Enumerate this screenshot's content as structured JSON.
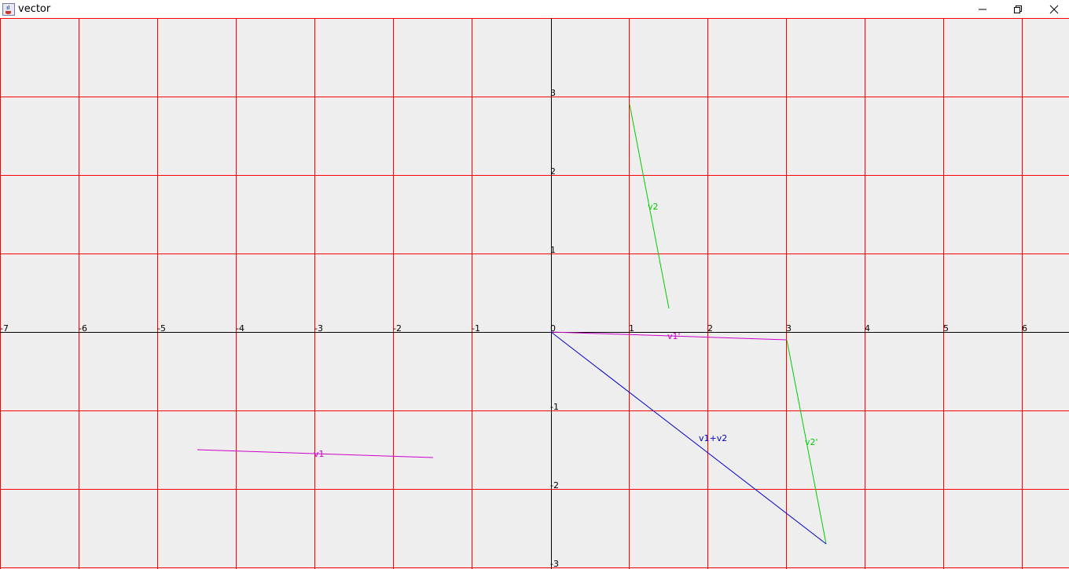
{
  "window": {
    "title": "vector",
    "app_icon": "java-cup-icon",
    "controls": [
      "minimize-icon",
      "restore-icon",
      "close-icon"
    ]
  },
  "colors": {
    "background": "#eeeeee",
    "grid": "#ff0000",
    "axis": "#000000",
    "v1": "#cc00cc",
    "v2": "#00cc00",
    "sum": "#0000cc"
  },
  "chart_data": {
    "type": "line",
    "xlim": [
      -7,
      6.6
    ],
    "ylim": [
      -3,
      4
    ],
    "grid": true,
    "x_ticks": [
      "-7",
      "-6",
      "-5",
      "-4",
      "-3",
      "-2",
      "-1",
      "0",
      "1",
      "2",
      "3",
      "4",
      "5",
      "6"
    ],
    "y_ticks": [
      "3",
      "2",
      "1",
      "-1",
      "-2",
      "-3"
    ],
    "vectors": [
      {
        "name": "v1",
        "color_key": "v1",
        "from": [
          -4.5,
          -1.5
        ],
        "to": [
          -1.5,
          -1.6
        ],
        "label_at": [
          -3.0,
          -1.55
        ]
      },
      {
        "name": "v2",
        "color_key": "v2",
        "from": [
          1.0,
          2.9
        ],
        "to": [
          1.5,
          0.3
        ],
        "label_at": [
          1.25,
          1.6
        ]
      },
      {
        "name": "v1'",
        "color_key": "v1",
        "from": [
          0.0,
          0.0
        ],
        "to": [
          3.0,
          -0.1
        ],
        "label_at": [
          1.5,
          -0.05
        ]
      },
      {
        "name": "v2'",
        "color_key": "v2",
        "from": [
          3.0,
          -0.1
        ],
        "to": [
          3.5,
          -2.7
        ],
        "label_at": [
          3.25,
          -1.4
        ]
      },
      {
        "name": "v1+v2",
        "color_key": "sum",
        "from": [
          0.0,
          0.0
        ],
        "to": [
          3.5,
          -2.7
        ],
        "label_at": [
          1.9,
          -1.35
        ]
      }
    ]
  }
}
